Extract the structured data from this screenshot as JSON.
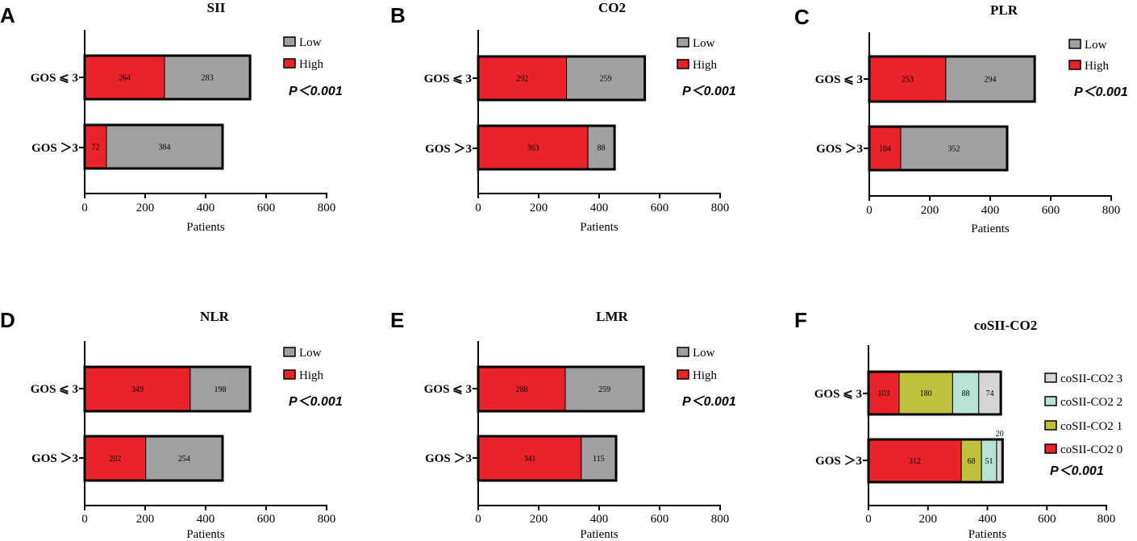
{
  "chart_data": [
    {
      "type": "bar",
      "orientation": "horizontal",
      "stacked": true,
      "panel": "A",
      "title": "SII",
      "categories": [
        "GOS ≤3",
        "GOS >3"
      ],
      "category_labels": [
        "GOS ⩽ 3",
        "GOS ＞3"
      ],
      "series": [
        {
          "name": "High",
          "color": "#e8232a",
          "values": [
            264,
            72
          ]
        },
        {
          "name": "Low",
          "color": "#a0a0a2",
          "values": [
            283,
            384
          ]
        }
      ],
      "legend": [
        "Low",
        "High"
      ],
      "xlabel": "Patients",
      "xlim": [
        0,
        800
      ],
      "xticks": [
        0,
        200,
        400,
        600,
        800
      ],
      "p_value": "P＜0.001",
      "p_value_placement": "upper-right"
    },
    {
      "type": "bar",
      "orientation": "horizontal",
      "stacked": true,
      "panel": "B",
      "title": "CO2",
      "categories": [
        "GOS ≤3",
        "GOS >3"
      ],
      "category_labels": [
        "GOS ⩽ 3",
        "GOS ＞3"
      ],
      "series": [
        {
          "name": "High",
          "color": "#e8232a",
          "values": [
            292,
            363
          ]
        },
        {
          "name": "Low",
          "color": "#a0a0a2",
          "values": [
            259,
            88
          ]
        }
      ],
      "legend": [
        "Low",
        "High"
      ],
      "xlabel": "Patients",
      "xlim": [
        0,
        800
      ],
      "xticks": [
        0,
        200,
        400,
        600,
        800
      ],
      "p_value": "P＜0.001",
      "p_value_placement": "upper-right"
    },
    {
      "type": "bar",
      "orientation": "horizontal",
      "stacked": true,
      "panel": "C",
      "title": "PLR",
      "categories": [
        "GOS ≤3",
        "GOS >3"
      ],
      "category_labels": [
        "GOS ⩽ 3",
        "GOS ＞3"
      ],
      "series": [
        {
          "name": "High",
          "color": "#e8232a",
          "values": [
            253,
            104
          ]
        },
        {
          "name": "Low",
          "color": "#a0a0a2",
          "values": [
            294,
            352
          ]
        }
      ],
      "legend": [
        "Low",
        "High"
      ],
      "xlabel": "Patients",
      "xlim": [
        0,
        800
      ],
      "xticks": [
        0,
        200,
        400,
        600,
        800
      ],
      "p_value": "P＜0.001",
      "p_value_placement": "upper-right"
    },
    {
      "type": "bar",
      "orientation": "horizontal",
      "stacked": true,
      "panel": "D",
      "title": "NLR",
      "categories": [
        "GOS ≤3",
        "GOS >3"
      ],
      "category_labels": [
        "GOS ⩽ 3",
        "GOS ＞3"
      ],
      "series": [
        {
          "name": "High",
          "color": "#e8232a",
          "values": [
            349,
            202
          ]
        },
        {
          "name": "Low",
          "color": "#a0a0a2",
          "values": [
            198,
            254
          ]
        }
      ],
      "legend": [
        "Low",
        "High"
      ],
      "xlabel": "Patients",
      "xlim": [
        0,
        800
      ],
      "xticks": [
        0,
        200,
        400,
        600,
        800
      ],
      "p_value": "P＜0.001",
      "p_value_placement": "upper-right"
    },
    {
      "type": "bar",
      "orientation": "horizontal",
      "stacked": true,
      "panel": "E",
      "title": "LMR",
      "categories": [
        "GOS ≤3",
        "GOS >3"
      ],
      "category_labels": [
        "GOS ⩽ 3",
        "GOS ＞3"
      ],
      "series": [
        {
          "name": "High",
          "color": "#e8232a",
          "values": [
            288,
            341
          ]
        },
        {
          "name": "Low",
          "color": "#a0a0a2",
          "values": [
            259,
            115
          ]
        }
      ],
      "legend": [
        "Low",
        "High"
      ],
      "xlabel": "Patients",
      "xlim": [
        0,
        800
      ],
      "xticks": [
        0,
        200,
        400,
        600,
        800
      ],
      "p_value": "P＜0.001",
      "p_value_placement": "upper-right"
    },
    {
      "type": "bar",
      "orientation": "horizontal",
      "stacked": true,
      "panel": "F",
      "title": "coSII-CO2",
      "categories": [
        "GOS ≤3",
        "GOS >3"
      ],
      "category_labels": [
        "GOS ⩽ 3",
        "GOS ＞3"
      ],
      "series": [
        {
          "name": "coSII-CO2 0",
          "color": "#e8232a",
          "values": [
            103,
            312
          ]
        },
        {
          "name": "coSII-CO2 1",
          "color": "#bfc03c",
          "values": [
            180,
            68
          ]
        },
        {
          "name": "coSII-CO2 2",
          "color": "#b7e3d6",
          "values": [
            88,
            51
          ]
        },
        {
          "name": "coSII-CO2 3",
          "color": "#d6d6d6",
          "values": [
            74,
            20
          ]
        }
      ],
      "legend": [
        "coSII-CO2 3",
        "coSII-CO2 2",
        "coSII-CO2 1",
        "coSII-CO2 0"
      ],
      "xlabel": "Patients",
      "xlim": [
        0,
        800
      ],
      "xticks": [
        0,
        200,
        400,
        600,
        800
      ],
      "p_value": "P＜0.001",
      "p_value_placement": "lower-right",
      "label_above_small_segments": true
    }
  ]
}
